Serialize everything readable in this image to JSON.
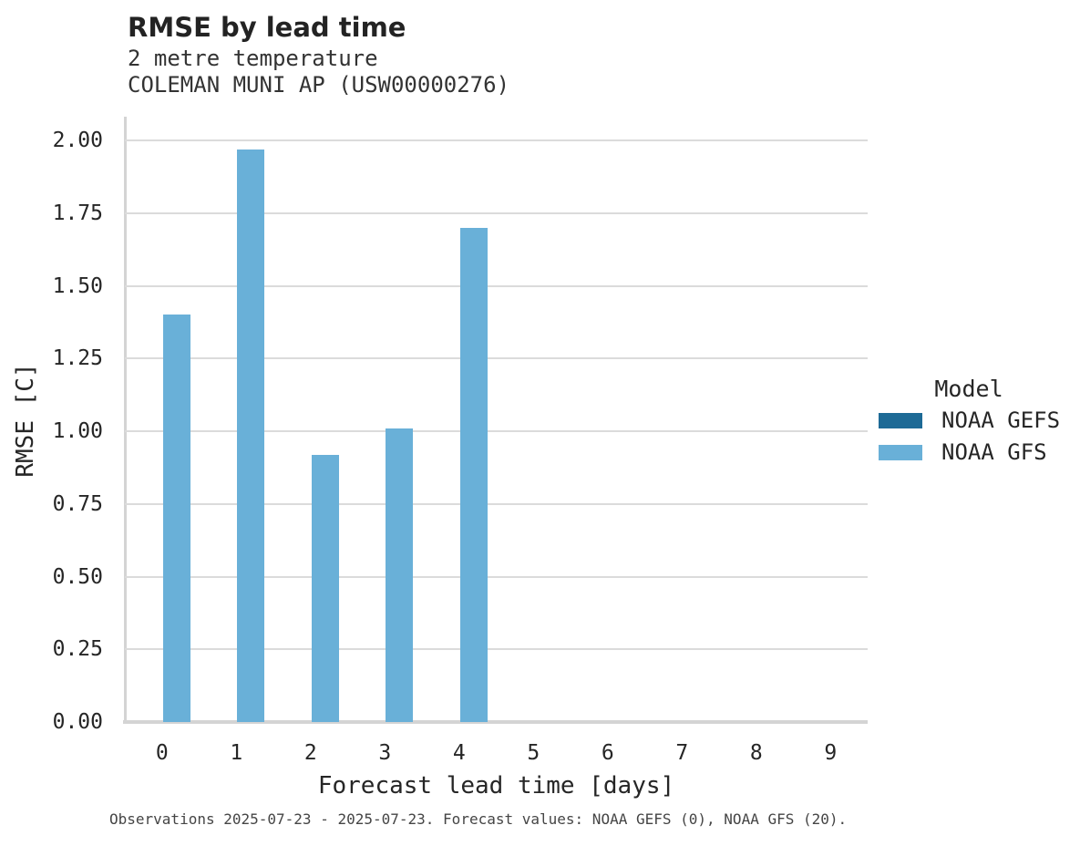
{
  "chart_data": {
    "type": "bar",
    "title": "RMSE by lead time",
    "subtitle_line1": "2 metre temperature",
    "subtitle_line2": "COLEMAN MUNI AP (USW00000276)",
    "xlabel": "Forecast lead time [days]",
    "ylabel": "RMSE [C]",
    "categories": [
      "0",
      "1",
      "2",
      "3",
      "4",
      "5",
      "6",
      "7",
      "8",
      "9"
    ],
    "series": [
      {
        "name": "NOAA GEFS",
        "color": "#1d6a96",
        "values": [
          null,
          null,
          null,
          null,
          null,
          null,
          null,
          null,
          null,
          null
        ]
      },
      {
        "name": "NOAA GFS",
        "color": "#69b0d8",
        "values": [
          1.4,
          1.97,
          0.92,
          1.01,
          1.7,
          null,
          null,
          null,
          null,
          null
        ]
      }
    ],
    "ylim": [
      0,
      2.0
    ],
    "ytick_step": 0.25,
    "grid": true,
    "legend": {
      "title": "Model",
      "position": "right"
    },
    "caption": "Observations 2025-07-23 - 2025-07-23. Forecast values: NOAA GEFS (0), NOAA GFS (20)."
  },
  "colors": {
    "background": "#ffffff",
    "gridline": "#dbdbdb",
    "axis_line": "#d4d4d4",
    "text": "#262626",
    "caption_text": "#454545"
  }
}
